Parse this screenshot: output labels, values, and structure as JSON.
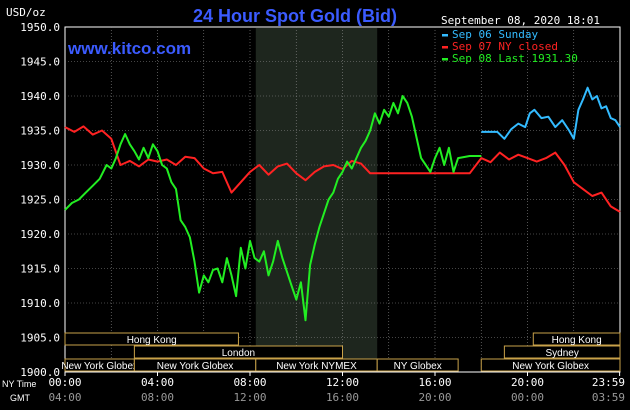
{
  "title": "24 Hour Spot Gold (Bid)",
  "watermark": "www.kitco.com",
  "unit_label": "USD/oz",
  "timestamp": "September 08, 2020 18:01",
  "legend": [
    {
      "label": "Sep 06 Sunday",
      "color": "#33bbff"
    },
    {
      "label": "Sep 07 NY closed",
      "color": "#ff2222"
    },
    {
      "label": "Sep 08 Last 1931.30",
      "color": "#22ee22"
    }
  ],
  "time_row_labels": {
    "primary": "NY Time",
    "secondary": "GMT"
  },
  "sessions": [
    {
      "label": "Hong Kong",
      "start": 0,
      "end": 7.5,
      "row": 0
    },
    {
      "label": "Hong Kong",
      "start": 20.25,
      "end": 24,
      "row": 0
    },
    {
      "label": "London",
      "start": 3,
      "end": 12,
      "row": 1
    },
    {
      "label": "Sydney",
      "start": 19,
      "end": 24,
      "row": 1
    },
    {
      "label": "New York Globex",
      "start": 0,
      "end": 3,
      "row": 2
    },
    {
      "label": "New York Globex",
      "start": 18,
      "end": 24,
      "row": 2
    },
    {
      "label": "New York Globex",
      "start": 3,
      "end": 8.25,
      "row": 2
    },
    {
      "label": "New York NYMEX",
      "start": 8.25,
      "end": 13.5,
      "row": 2
    },
    {
      "label": "NY Globex",
      "start": 13.5,
      "end": 17,
      "row": 2
    }
  ],
  "chart_data": {
    "type": "line",
    "title": "24 Hour Spot Gold (Bid)",
    "ylabel": "USD/oz",
    "ylim": [
      1900,
      1950
    ],
    "y_ticks": [
      1950,
      1945,
      1940,
      1935,
      1930,
      1925,
      1920,
      1915,
      1910,
      1905,
      1900
    ],
    "y_tick_labels": [
      "1950.0",
      "1945.0",
      "1940.0",
      "1935.0",
      "1930.0",
      "1925.0",
      "1920.0",
      "1915.0",
      "1910.0",
      "1905.0",
      "1900.0"
    ],
    "xlim": [
      0,
      24
    ],
    "x_ticks": [
      0,
      4,
      8,
      12,
      16,
      20,
      23.983
    ],
    "x_tick_labels_ny": [
      "00:00",
      "04:00",
      "08:00",
      "12:00",
      "16:00",
      "20:00",
      "23:59"
    ],
    "x_tick_labels_gmt": [
      "04:00",
      "08:00",
      "12:00",
      "16:00",
      "20:00",
      "00:00",
      "03:59"
    ],
    "highlight_x_range": [
      8.25,
      13.5
    ],
    "grid": true,
    "legend_position": "top-right",
    "series": [
      {
        "name": "Sep 06 Sunday",
        "color": "#33bbff",
        "x": [
          18,
          18.7,
          19,
          19.3,
          19.6,
          19.9,
          20.1,
          20.3,
          20.6,
          20.9,
          21.2,
          21.5,
          21.8,
          22.0,
          22.2,
          22.4,
          22.6,
          22.8,
          23.0,
          23.2,
          23.4,
          23.6,
          23.8,
          24.0
        ],
        "y": [
          1934.8,
          1934.8,
          1933.8,
          1935.2,
          1936.0,
          1935.5,
          1937.5,
          1938.0,
          1936.8,
          1937.0,
          1935.5,
          1936.5,
          1935.0,
          1933.8,
          1938.0,
          1939.5,
          1941.2,
          1939.5,
          1940.0,
          1938.2,
          1938.5,
          1936.8,
          1936.5,
          1935.5
        ]
      },
      {
        "name": "Sep 07 NY closed",
        "color": "#ff2222",
        "x": [
          0,
          0.4,
          0.8,
          1.2,
          1.6,
          2.0,
          2.4,
          2.8,
          3.2,
          3.6,
          4.0,
          4.4,
          4.8,
          5.2,
          5.6,
          6.0,
          6.4,
          6.8,
          7.2,
          7.6,
          8.0,
          8.4,
          8.8,
          9.2,
          9.6,
          10.0,
          10.4,
          10.8,
          11.2,
          11.6,
          12.0,
          12.4,
          12.8,
          13.2,
          14,
          15,
          16,
          17,
          17.5,
          18.0,
          18.4,
          18.8,
          19.2,
          19.6,
          20.0,
          20.4,
          20.8,
          21.2,
          21.6,
          22.0,
          22.4,
          22.8,
          23.2,
          23.6,
          24.0
        ],
        "y": [
          1935.5,
          1934.8,
          1935.6,
          1934.4,
          1935.0,
          1933.8,
          1930.0,
          1930.6,
          1929.8,
          1930.8,
          1930.5,
          1930.8,
          1930.0,
          1931.2,
          1931.0,
          1929.5,
          1928.8,
          1929.0,
          1926.0,
          1927.5,
          1929.0,
          1930.0,
          1928.6,
          1929.8,
          1930.2,
          1928.8,
          1927.8,
          1929.0,
          1929.8,
          1930.0,
          1929.4,
          1930.6,
          1930.2,
          1928.8,
          1928.8,
          1928.8,
          1928.8,
          1928.8,
          1928.8,
          1931.0,
          1930.4,
          1931.8,
          1930.8,
          1931.5,
          1931.0,
          1930.5,
          1931.0,
          1931.8,
          1930.0,
          1927.5,
          1926.5,
          1925.5,
          1926.0,
          1924.0,
          1923.2
        ]
      },
      {
        "name": "Sep 08 Last 1931.30",
        "color": "#22ee22",
        "x": [
          0,
          0.3,
          0.6,
          0.9,
          1.2,
          1.5,
          1.8,
          2.0,
          2.2,
          2.4,
          2.6,
          2.8,
          3.0,
          3.2,
          3.4,
          3.6,
          3.8,
          4.0,
          4.2,
          4.4,
          4.6,
          4.8,
          5.0,
          5.2,
          5.4,
          5.6,
          5.8,
          6.0,
          6.2,
          6.4,
          6.6,
          6.8,
          7.0,
          7.2,
          7.4,
          7.6,
          7.8,
          8.0,
          8.2,
          8.4,
          8.6,
          8.8,
          9.0,
          9.2,
          9.4,
          9.6,
          9.8,
          10.0,
          10.2,
          10.4,
          10.6,
          10.8,
          11.0,
          11.2,
          11.4,
          11.6,
          11.8,
          12.0,
          12.2,
          12.4,
          12.6,
          12.8,
          13.0,
          13.2,
          13.4,
          13.6,
          13.8,
          14.0,
          14.2,
          14.4,
          14.6,
          14.8,
          15.0,
          15.2,
          15.4,
          15.6,
          15.8,
          16.0,
          16.2,
          16.4,
          16.6,
          16.8,
          17.0,
          17.5,
          18.0
        ],
        "y": [
          1923.5,
          1924.5,
          1925.0,
          1926.0,
          1927.0,
          1928.0,
          1930.0,
          1929.5,
          1931.0,
          1933.0,
          1934.5,
          1933.0,
          1932.0,
          1930.8,
          1932.5,
          1931.0,
          1933.0,
          1932.0,
          1930.0,
          1929.5,
          1927.5,
          1926.5,
          1922.0,
          1921.0,
          1919.5,
          1916.0,
          1911.5,
          1914.0,
          1913.0,
          1914.8,
          1915.0,
          1913.0,
          1916.5,
          1914.0,
          1911.0,
          1918.0,
          1915.0,
          1919.0,
          1916.5,
          1916.0,
          1917.5,
          1914.0,
          1916.0,
          1919.0,
          1916.5,
          1914.5,
          1912.5,
          1910.5,
          1913.0,
          1907.5,
          1915.5,
          1918.5,
          1921.0,
          1923.0,
          1925.0,
          1926.0,
          1928.0,
          1929.0,
          1930.5,
          1929.5,
          1931.0,
          1932.5,
          1933.5,
          1935.0,
          1937.5,
          1936.0,
          1938.0,
          1937.0,
          1939.0,
          1937.5,
          1940.0,
          1939.0,
          1937.0,
          1934.0,
          1931.0,
          1930.0,
          1929.0,
          1931.0,
          1932.5,
          1930.0,
          1932.5,
          1929.0,
          1931.0,
          1931.3,
          1931.3
        ]
      }
    ]
  }
}
